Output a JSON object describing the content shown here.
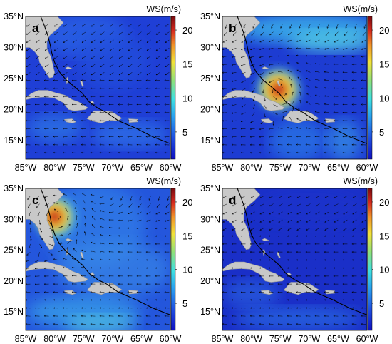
{
  "figure": {
    "colorbar_label": "WS(m/s)",
    "colorbar_ticks": [
      5,
      10,
      15,
      20
    ],
    "colorbar_range": [
      1,
      22
    ],
    "lat_ticks": [
      "15°N",
      "20°N",
      "25°N",
      "30°N",
      "35°N"
    ],
    "lon_ticks": [
      "85°W",
      "80°W",
      "75°W",
      "70°W",
      "65°W",
      "60°W"
    ],
    "lat_range": [
      12,
      35
    ],
    "lon_range": [
      -85,
      -60
    ],
    "colors": {
      "land": "#c8c8c8",
      "track": "#000000",
      "wind_low": "#1a2fd0",
      "wind_mid": "#38c8e8",
      "wind_high": "#c81e1e"
    },
    "panels": [
      {
        "id": "a",
        "label": "a",
        "storm_center": null,
        "storm_peak": null
      },
      {
        "id": "b",
        "label": "b",
        "storm_center": [
          -75.3,
          23.2
        ],
        "storm_peak": 21
      },
      {
        "id": "c",
        "label": "c",
        "storm_center": [
          -80.0,
          30.4
        ],
        "storm_peak": 21
      },
      {
        "id": "d",
        "label": "d",
        "storm_center": null,
        "storm_peak": null
      }
    ]
  }
}
